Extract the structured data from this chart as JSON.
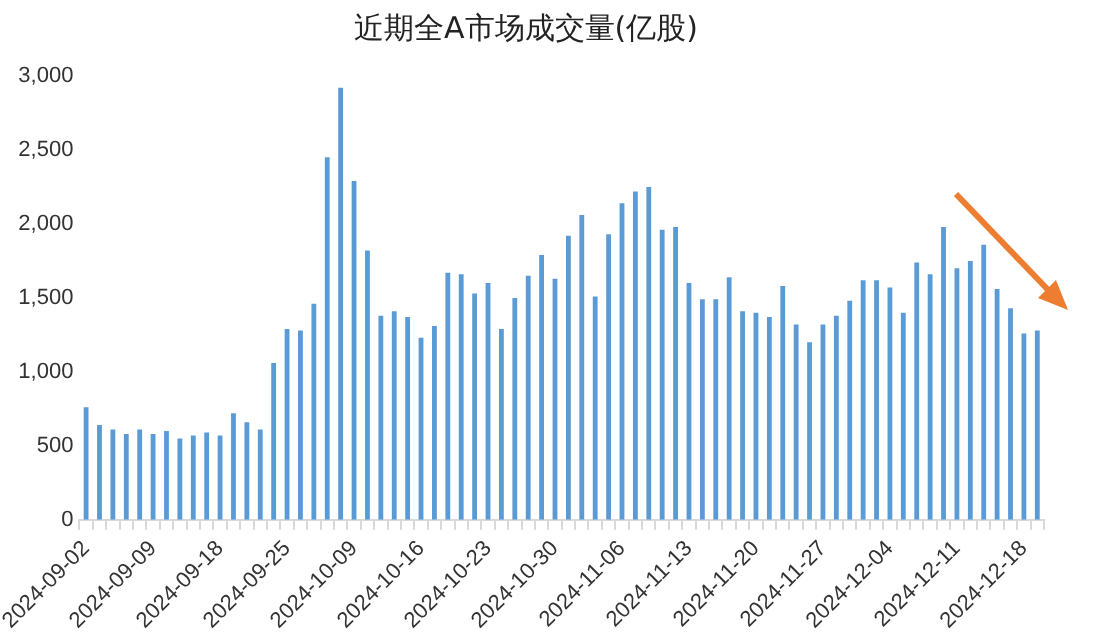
{
  "chart_data": {
    "type": "bar",
    "title": "近期全A市场成交量(亿股)",
    "categories": [
      "2024-09-02",
      null,
      null,
      null,
      null,
      "2024-09-09",
      null,
      null,
      null,
      null,
      "2024-09-18",
      null,
      null,
      null,
      null,
      "2024-09-25",
      null,
      null,
      null,
      null,
      "2024-10-09",
      null,
      null,
      null,
      null,
      "2024-10-16",
      null,
      null,
      null,
      null,
      "2024-10-23",
      null,
      null,
      null,
      null,
      "2024-10-30",
      null,
      null,
      null,
      null,
      "2024-11-06",
      null,
      null,
      null,
      null,
      "2024-11-13",
      null,
      null,
      null,
      null,
      "2024-11-20",
      null,
      null,
      null,
      null,
      "2024-11-27",
      null,
      null,
      null,
      null,
      "2024-12-04",
      null,
      null,
      null,
      null,
      "2024-12-11",
      null,
      null,
      null,
      null,
      "2024-12-18",
      null
    ],
    "values": [
      760,
      640,
      610,
      580,
      610,
      580,
      600,
      550,
      570,
      590,
      570,
      720,
      660,
      610,
      1060,
      1290,
      1280,
      1460,
      2450,
      2920,
      2290,
      1820,
      1380,
      1410,
      1370,
      1230,
      1310,
      1670,
      1660,
      1530,
      1600,
      1290,
      1500,
      1650,
      1790,
      1630,
      1920,
      2060,
      1510,
      1930,
      2140,
      2220,
      2250,
      1960,
      1980,
      1600,
      1490,
      1490,
      1640,
      1410,
      1400,
      1370,
      1580,
      1320,
      1200,
      1320,
      1380,
      1480,
      1620,
      1620,
      1570,
      1400,
      1740,
      1660,
      1980,
      1700,
      1750,
      1860,
      1560,
      1430,
      1260,
      1280
    ],
    "color": "#5b9bd5",
    "ylim": [
      0,
      3000
    ],
    "yticks": [
      {
        "value": 0,
        "label": "0"
      },
      {
        "value": 500,
        "label": "500"
      },
      {
        "value": 1000,
        "label": "1,000"
      },
      {
        "value": 1500,
        "label": "1,500"
      },
      {
        "value": 2000,
        "label": "2,000"
      },
      {
        "value": 2500,
        "label": "2,500"
      },
      {
        "value": 3000,
        "label": "3,000"
      }
    ]
  }
}
